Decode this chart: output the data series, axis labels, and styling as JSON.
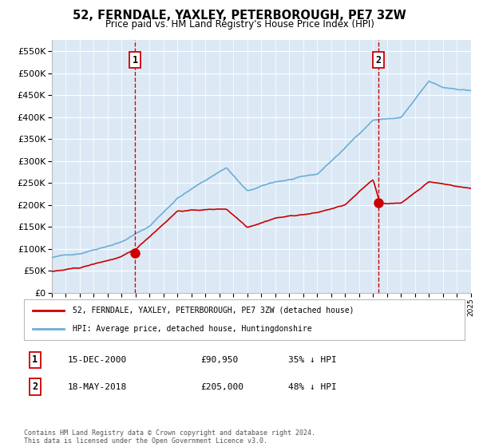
{
  "title": "52, FERNDALE, YAXLEY, PETERBOROUGH, PE7 3ZW",
  "subtitle": "Price paid vs. HM Land Registry's House Price Index (HPI)",
  "legend_line1": "52, FERNDALE, YAXLEY, PETERBOROUGH, PE7 3ZW (detached house)",
  "legend_line2": "HPI: Average price, detached house, Huntingdonshire",
  "annotation1_date": "15-DEC-2000",
  "annotation1_price": "£90,950",
  "annotation1_hpi": "35% ↓ HPI",
  "annotation2_date": "18-MAY-2018",
  "annotation2_price": "£205,000",
  "annotation2_hpi": "48% ↓ HPI",
  "footer": "Contains HM Land Registry data © Crown copyright and database right 2024.\nThis data is licensed under the Open Government Licence v3.0.",
  "hpi_color": "#6baed6",
  "price_color": "#cc0000",
  "annotation_color": "#cc0000",
  "bg_color": "#dce9f5",
  "ylim": [
    0,
    575000
  ],
  "yticks": [
    0,
    50000,
    100000,
    150000,
    200000,
    250000,
    300000,
    350000,
    400000,
    450000,
    500000,
    550000
  ],
  "purchase1_year": 2000.96,
  "purchase1_price": 90950,
  "purchase2_year": 2018.38,
  "purchase2_price": 205000,
  "hpi_anchors_x": [
    1995,
    1997,
    2000,
    2002,
    2004,
    2007.5,
    2009,
    2011,
    2014,
    2016,
    2018,
    2020,
    2022,
    2023,
    2025
  ],
  "hpi_anchors_y": [
    80000,
    90000,
    120000,
    155000,
    220000,
    290000,
    235000,
    255000,
    270000,
    330000,
    395000,
    400000,
    480000,
    465000,
    460000
  ],
  "price_anchors_x": [
    1995,
    1997,
    2000,
    2001,
    2004,
    2007.5,
    2009,
    2011,
    2014,
    2016,
    2018,
    2018.5,
    2020,
    2022,
    2023,
    2025
  ],
  "price_anchors_y": [
    48000,
    55000,
    80000,
    95000,
    185000,
    190000,
    150000,
    173000,
    185000,
    202000,
    258000,
    205000,
    205000,
    255000,
    250000,
    240000
  ]
}
